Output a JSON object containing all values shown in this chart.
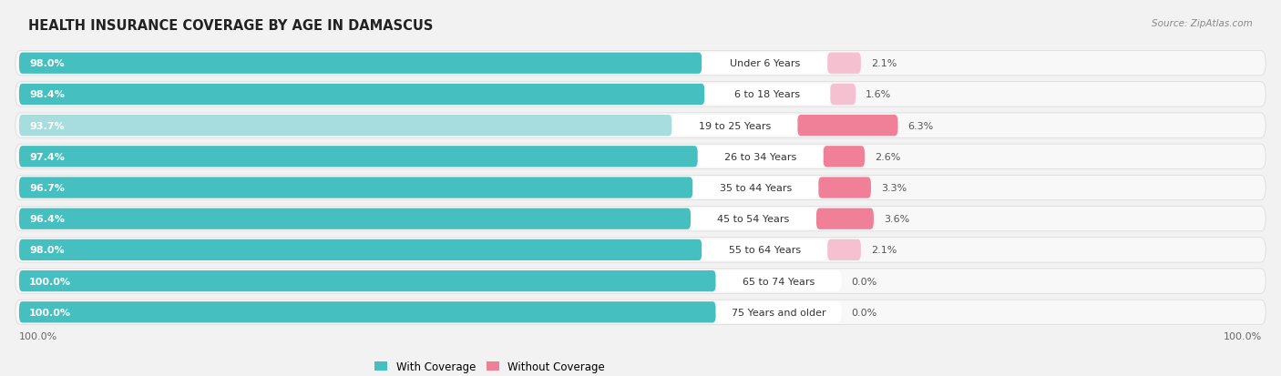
{
  "title": "HEALTH INSURANCE COVERAGE BY AGE IN DAMASCUS",
  "source": "Source: ZipAtlas.com",
  "categories": [
    "Under 6 Years",
    "6 to 18 Years",
    "19 to 25 Years",
    "26 to 34 Years",
    "35 to 44 Years",
    "45 to 54 Years",
    "55 to 64 Years",
    "65 to 74 Years",
    "75 Years and older"
  ],
  "with_coverage": [
    98.0,
    98.4,
    93.7,
    97.4,
    96.7,
    96.4,
    98.0,
    100.0,
    100.0
  ],
  "without_coverage": [
    2.1,
    1.6,
    6.3,
    2.6,
    3.3,
    3.6,
    2.1,
    0.0,
    0.0
  ],
  "color_with": "#45BFBF",
  "color_with_light": "#A8DDE0",
  "color_without": "#F08098",
  "color_without_light": "#F5C0D0",
  "bg_color": "#f2f2f2",
  "row_bg_color": "#e8e8e8",
  "row_fill_color": "#f8f8f8",
  "title_fontsize": 10.5,
  "label_fontsize": 8.0,
  "legend_fontsize": 8.5,
  "source_fontsize": 7.5
}
